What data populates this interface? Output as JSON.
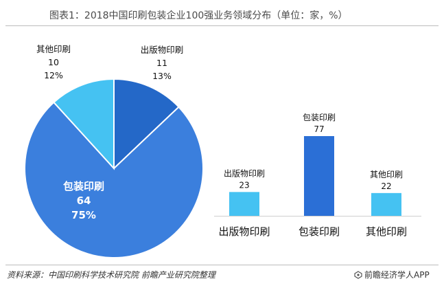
{
  "title": "图表1：2018中国印刷包装企业100强业务领域分布（单位：家，%）",
  "source": "资料来源：中国印刷科学技术研究院 前瞻产业研究院整理",
  "brand": "前瞻经济学人APP",
  "chart_data": [
    {
      "type": "pie",
      "title": "",
      "slices": [
        {
          "label": "包装印刷",
          "value": 64,
          "percent": "75%",
          "color": "#3b7fdd"
        },
        {
          "label": "其他印刷",
          "value": 10,
          "percent": "12%",
          "color": "#45c2f2"
        },
        {
          "label": "出版物印刷",
          "value": 11,
          "percent": "13%",
          "color": "#2468c8"
        }
      ],
      "start_angle_deg": -90,
      "slice_order": [
        "出版物印刷",
        "包装印刷",
        "其他印刷"
      ]
    },
    {
      "type": "bar",
      "title": "",
      "categories": [
        "出版物印刷",
        "包装印刷",
        "其他印刷"
      ],
      "values": [
        23,
        77,
        22
      ],
      "colors": [
        "#45c2f2",
        "#2b6fd6",
        "#45c2f2"
      ],
      "ylim": [
        0,
        77
      ],
      "grid": false,
      "legend": "none"
    }
  ]
}
